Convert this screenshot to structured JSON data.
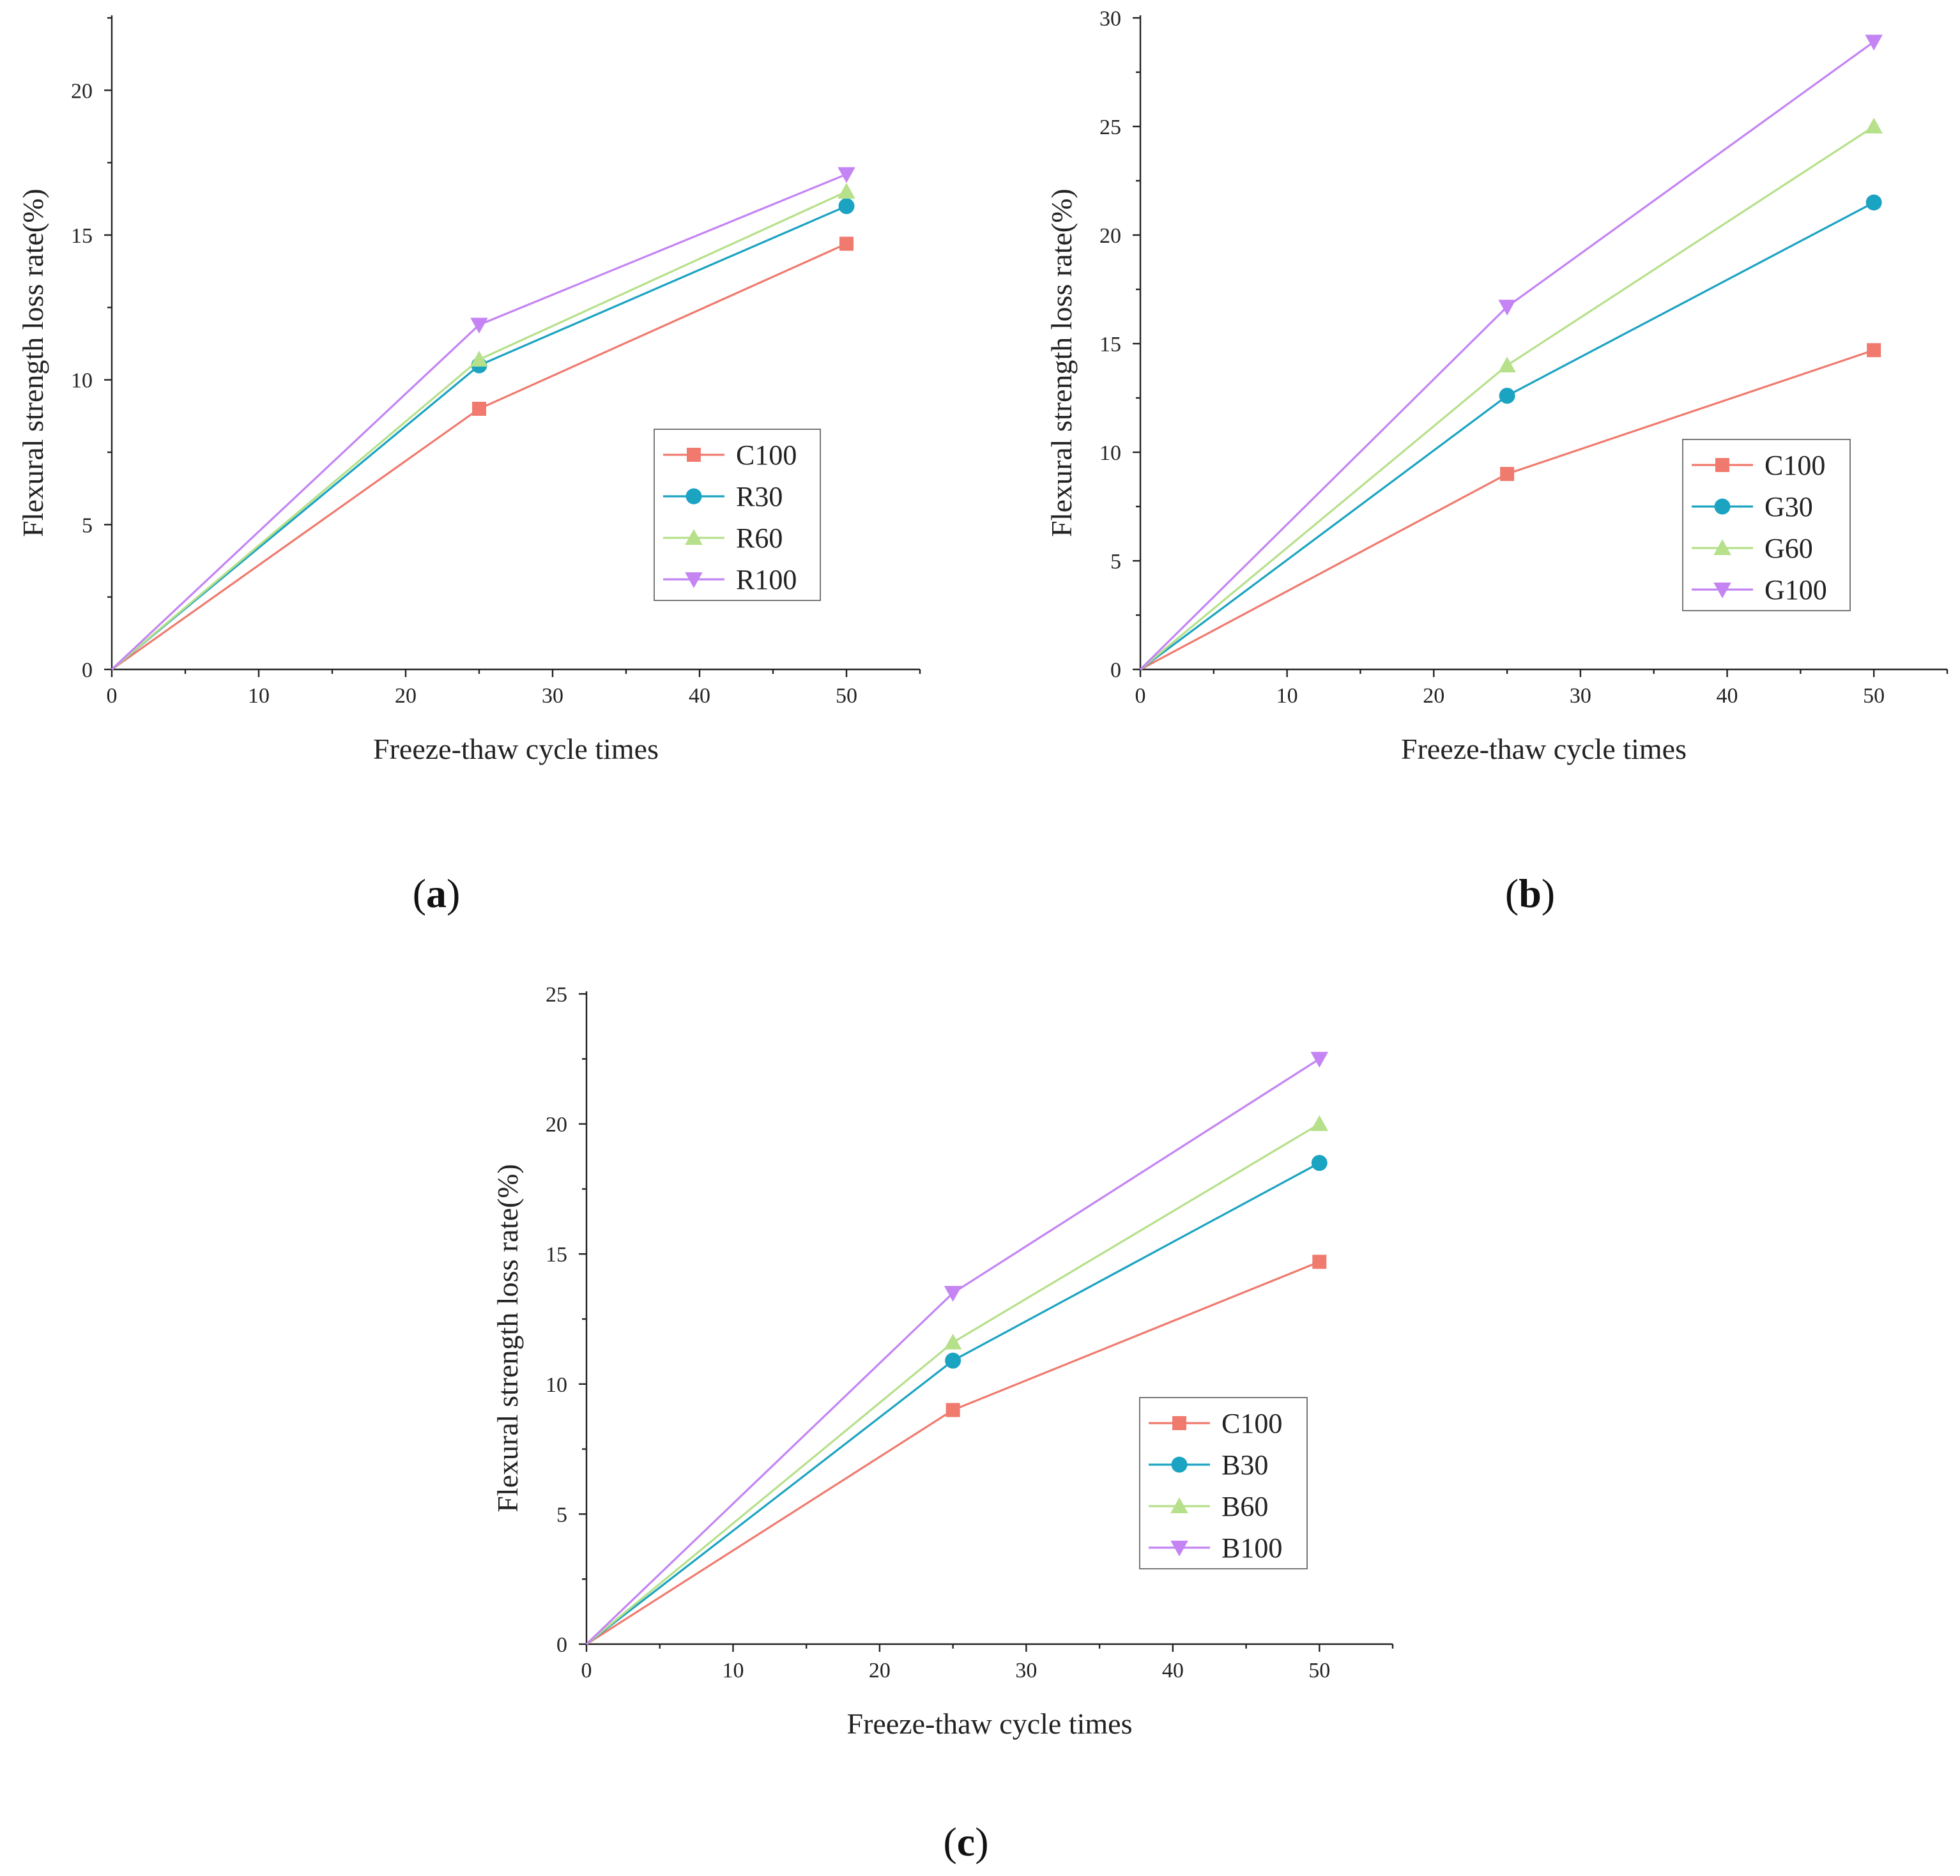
{
  "chart_data": [
    {
      "panel_label": "a",
      "type": "line",
      "xlabel": "Freeze-thaw cycle times",
      "ylabel": "Flexural strength loss rate(%)",
      "xlim": [
        0,
        55
      ],
      "ylim": [
        0,
        22.5
      ],
      "xticks": [
        0,
        10,
        20,
        30,
        40,
        50
      ],
      "yticks": [
        0,
        5,
        10,
        15,
        20
      ],
      "legend_position": "center-right",
      "x": [
        0,
        25,
        50
      ],
      "series": [
        {
          "name": "C100",
          "values": [
            0,
            9.0,
            14.7
          ],
          "color": "#f07a6e",
          "marker": "square"
        },
        {
          "name": "R30",
          "values": [
            0,
            10.5,
            16.0
          ],
          "color": "#1ba3c2",
          "marker": "circle"
        },
        {
          "name": "R60",
          "values": [
            0,
            10.7,
            16.5
          ],
          "color": "#b6e08a",
          "marker": "triangle-up"
        },
        {
          "name": "R100",
          "values": [
            0,
            11.9,
            17.1
          ],
          "color": "#c484f4",
          "marker": "triangle-down"
        }
      ]
    },
    {
      "panel_label": "b",
      "type": "line",
      "xlabel": "Freeze-thaw cycle times",
      "ylabel": "Flexural strength loss rate(%)",
      "xlim": [
        0,
        55
      ],
      "ylim": [
        0,
        30
      ],
      "xticks": [
        0,
        10,
        20,
        30,
        40,
        50
      ],
      "yticks": [
        0,
        5,
        10,
        15,
        20,
        25,
        30
      ],
      "legend_position": "lower-right",
      "x": [
        0,
        25,
        50
      ],
      "series": [
        {
          "name": "C100",
          "values": [
            0,
            9.0,
            14.7
          ],
          "color": "#f07a6e",
          "marker": "square"
        },
        {
          "name": "G30",
          "values": [
            0,
            12.6,
            21.5
          ],
          "color": "#1ba3c2",
          "marker": "circle"
        },
        {
          "name": "G60",
          "values": [
            0,
            14.0,
            25.0
          ],
          "color": "#b6e08a",
          "marker": "triangle-up"
        },
        {
          "name": "G100",
          "values": [
            0,
            16.7,
            28.9
          ],
          "color": "#c484f4",
          "marker": "triangle-down"
        }
      ]
    },
    {
      "panel_label": "c",
      "type": "line",
      "xlabel": "Freeze-thaw cycle times",
      "ylabel": "Flexural strength loss rate(%)",
      "xlim": [
        0,
        55
      ],
      "ylim": [
        0,
        25
      ],
      "xticks": [
        0,
        10,
        20,
        30,
        40,
        50
      ],
      "yticks": [
        0,
        5,
        10,
        15,
        20,
        25
      ],
      "legend_position": "lower-right",
      "x": [
        0,
        25,
        50
      ],
      "series": [
        {
          "name": "C100",
          "values": [
            0,
            9.0,
            14.7
          ],
          "color": "#f07a6e",
          "marker": "square"
        },
        {
          "name": "B30",
          "values": [
            0,
            10.9,
            18.5
          ],
          "color": "#1ba3c2",
          "marker": "circle"
        },
        {
          "name": "B60",
          "values": [
            0,
            11.6,
            20.0
          ],
          "color": "#b6e08a",
          "marker": "triangle-up"
        },
        {
          "name": "B100",
          "values": [
            0,
            13.5,
            22.5
          ],
          "color": "#c484f4",
          "marker": "triangle-down"
        }
      ]
    }
  ]
}
